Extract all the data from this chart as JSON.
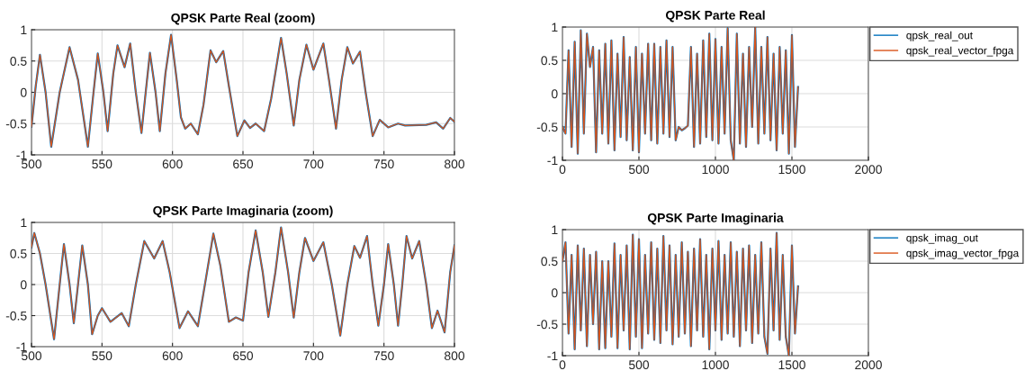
{
  "chart_data": [
    {
      "type": "line",
      "title": "QPSK Parte Real (zoom)",
      "xlim": [
        500,
        800
      ],
      "xticks": [
        500,
        550,
        600,
        650,
        700,
        750,
        800
      ],
      "ylim": [
        -1,
        1
      ],
      "yticks": [
        -1,
        -0.5,
        0,
        0.5,
        1
      ],
      "grid": true,
      "legend": false,
      "x": [
        500,
        503,
        506,
        510,
        514,
        520,
        527,
        533,
        540,
        544,
        547,
        551,
        554,
        558,
        561,
        566,
        570,
        574,
        578,
        581,
        584,
        588,
        591,
        595,
        599,
        603,
        606,
        609,
        613,
        618,
        622,
        627,
        631,
        636,
        640,
        646,
        651,
        655,
        659,
        665,
        670,
        677,
        681,
        686,
        690,
        695,
        700,
        707,
        711,
        716,
        720,
        724,
        728,
        733,
        737,
        742,
        747,
        753,
        760,
        765,
        780,
        787,
        792,
        797,
        800
      ],
      "series": [
        {
          "color": "#0072bd",
          "values": [
            -0.55,
            0.1,
            0.6,
            0,
            -0.87,
            0,
            0.72,
            0.2,
            -0.87,
            0,
            0.62,
            0,
            -0.62,
            0.3,
            0.75,
            0.4,
            0.78,
            0,
            -0.65,
            0,
            0.63,
            0,
            -0.62,
            0.3,
            0.92,
            0.2,
            -0.4,
            -0.58,
            -0.5,
            -0.67,
            -0.2,
            0.67,
            0.48,
            0.66,
            0.1,
            -0.7,
            -0.45,
            -0.57,
            -0.5,
            -0.62,
            -0.1,
            0.87,
            0.3,
            -0.53,
            0.2,
            0.76,
            0.36,
            0.78,
            0.2,
            -0.58,
            0.2,
            0.72,
            0.46,
            0.65,
            0,
            -0.7,
            -0.44,
            -0.56,
            -0.5,
            -0.53,
            -0.52,
            -0.48,
            -0.58,
            -0.41,
            -0.47
          ]
        },
        {
          "color": "#d95319",
          "values": [
            -0.55,
            0.1,
            0.6,
            0,
            -0.87,
            0,
            0.72,
            0.2,
            -0.87,
            0,
            0.62,
            0,
            -0.62,
            0.3,
            0.75,
            0.4,
            0.78,
            0,
            -0.65,
            0,
            0.63,
            0,
            -0.62,
            0.3,
            0.92,
            0.2,
            -0.4,
            -0.58,
            -0.5,
            -0.67,
            -0.2,
            0.67,
            0.48,
            0.66,
            0.1,
            -0.7,
            -0.45,
            -0.57,
            -0.5,
            -0.62,
            -0.1,
            0.87,
            0.3,
            -0.53,
            0.2,
            0.76,
            0.36,
            0.78,
            0.2,
            -0.58,
            0.2,
            0.72,
            0.46,
            0.65,
            0,
            -0.7,
            -0.44,
            -0.56,
            -0.5,
            -0.53,
            -0.52,
            -0.48,
            -0.58,
            -0.41,
            -0.47
          ]
        }
      ]
    },
    {
      "type": "line",
      "title": "QPSK Parte Real",
      "xlim": [
        0,
        2000
      ],
      "xticks": [
        0,
        500,
        1000,
        1500,
        2000
      ],
      "ylim": [
        -1,
        1
      ],
      "yticks": [
        -1,
        -0.5,
        0,
        0.5,
        1
      ],
      "grid": true,
      "legend": "right",
      "x": [
        0,
        20,
        40,
        60,
        80,
        100,
        120,
        140,
        160,
        180,
        200,
        220,
        240,
        260,
        280,
        300,
        320,
        340,
        360,
        380,
        400,
        420,
        440,
        460,
        480,
        500,
        520,
        540,
        560,
        580,
        600,
        620,
        640,
        660,
        680,
        700,
        720,
        740,
        760,
        780,
        800,
        820,
        840,
        860,
        880,
        900,
        920,
        940,
        960,
        980,
        1000,
        1020,
        1040,
        1060,
        1080,
        1100,
        1120,
        1140,
        1160,
        1180,
        1200,
        1220,
        1240,
        1260,
        1280,
        1300,
        1320,
        1340,
        1360,
        1380,
        1400,
        1420,
        1440,
        1460,
        1480,
        1500,
        1520,
        1540
      ],
      "series": [
        {
          "name": "qpsk_real_out",
          "color": "#0072bd",
          "values": [
            -0.5,
            -0.6,
            0.65,
            -0.8,
            0.78,
            -0.9,
            0.95,
            -0.6,
            0.9,
            0.4,
            0.7,
            -0.88,
            0.65,
            -0.6,
            0.75,
            -0.75,
            0.8,
            -0.85,
            0.6,
            -0.65,
            0.85,
            -0.7,
            0.55,
            -0.85,
            0.7,
            -0.88,
            0.6,
            -0.6,
            0.75,
            -0.7,
            0.75,
            -0.75,
            0.7,
            -0.6,
            0.8,
            -0.65,
            0.7,
            -0.7,
            -0.5,
            -0.55,
            -0.52,
            -0.48,
            0.7,
            -0.8,
            0.6,
            -0.75,
            0.8,
            -0.65,
            0.9,
            -0.7,
            0.82,
            -0.75,
            0.7,
            -0.6,
            0.98,
            -0.7,
            -1.0,
            0.9,
            -0.75,
            0.6,
            -0.8,
            0.7,
            -0.5,
            1.0,
            -0.75,
            0.7,
            -0.6,
            0.85,
            -0.7,
            0.6,
            -0.85,
            0.7,
            -0.6,
            0.65,
            -0.9,
            0.88,
            -0.8,
            0.1
          ]
        },
        {
          "name": "qpsk_real_vector_fpga",
          "color": "#d95319",
          "values": [
            -0.5,
            -0.6,
            0.65,
            -0.8,
            0.78,
            -0.9,
            0.95,
            -0.6,
            0.9,
            0.4,
            0.7,
            -0.88,
            0.65,
            -0.6,
            0.75,
            -0.75,
            0.8,
            -0.85,
            0.6,
            -0.65,
            0.85,
            -0.7,
            0.55,
            -0.85,
            0.7,
            -0.88,
            0.6,
            -0.6,
            0.75,
            -0.7,
            0.75,
            -0.75,
            0.7,
            -0.6,
            0.8,
            -0.65,
            0.7,
            -0.7,
            -0.5,
            -0.55,
            -0.52,
            -0.48,
            0.7,
            -0.8,
            0.6,
            -0.75,
            0.8,
            -0.65,
            0.9,
            -0.7,
            0.82,
            -0.75,
            0.7,
            -0.6,
            0.98,
            -0.7,
            -1.0,
            0.9,
            -0.75,
            0.6,
            -0.8,
            0.7,
            -0.5,
            1.0,
            -0.75,
            0.7,
            -0.6,
            0.85,
            -0.7,
            0.6,
            -0.85,
            0.7,
            -0.6,
            0.65,
            -0.9,
            0.88,
            -0.8,
            0.1
          ]
        }
      ]
    },
    {
      "type": "line",
      "title": "QPSK Parte Imaginaria (zoom)",
      "xlim": [
        500,
        800
      ],
      "xticks": [
        500,
        550,
        600,
        650,
        700,
        750,
        800
      ],
      "ylim": [
        -1,
        1
      ],
      "yticks": [
        -1,
        -0.5,
        0,
        0.5,
        1
      ],
      "grid": true,
      "legend": false,
      "x": [
        500,
        502,
        506,
        510,
        516,
        520,
        523,
        527,
        530,
        533,
        536,
        540,
        543,
        547,
        550,
        556,
        564,
        569,
        574,
        580,
        587,
        593,
        598,
        605,
        611,
        618,
        623,
        629,
        634,
        640,
        645,
        650,
        654,
        659,
        664,
        668,
        673,
        677,
        682,
        686,
        690,
        694,
        700,
        707,
        713,
        719,
        724,
        729,
        733,
        738,
        742,
        746,
        750,
        753,
        757,
        760,
        763,
        766,
        770,
        775,
        780,
        784,
        788,
        793,
        797,
        800
      ],
      "series": [
        {
          "color": "#0072bd",
          "values": [
            0.6,
            0.83,
            0.5,
            0,
            -0.88,
            0,
            0.65,
            0,
            -0.62,
            0,
            0.63,
            0,
            -0.8,
            -0.5,
            -0.38,
            -0.6,
            -0.46,
            -0.67,
            0,
            0.7,
            0.42,
            0.7,
            0.2,
            -0.7,
            -0.43,
            -0.67,
            0,
            0.82,
            0.3,
            -0.6,
            -0.53,
            -0.58,
            0.2,
            0.87,
            0.2,
            -0.52,
            0.2,
            0.92,
            0.2,
            -0.53,
            0.2,
            0.75,
            0.38,
            0.68,
            0,
            -0.82,
            0,
            0.62,
            0.43,
            0.78,
            0,
            -0.66,
            0,
            0.65,
            0,
            -0.66,
            0,
            0.78,
            0.42,
            0.7,
            0,
            -0.7,
            -0.42,
            -0.77,
            0.2,
            0.63
          ]
        },
        {
          "color": "#d95319",
          "values": [
            0.6,
            0.83,
            0.5,
            0,
            -0.88,
            0,
            0.65,
            0,
            -0.62,
            0,
            0.63,
            0,
            -0.8,
            -0.5,
            -0.38,
            -0.6,
            -0.46,
            -0.67,
            0,
            0.7,
            0.42,
            0.7,
            0.2,
            -0.7,
            -0.43,
            -0.67,
            0,
            0.82,
            0.3,
            -0.6,
            -0.53,
            -0.58,
            0.2,
            0.87,
            0.2,
            -0.52,
            0.2,
            0.92,
            0.2,
            -0.53,
            0.2,
            0.75,
            0.38,
            0.68,
            0,
            -0.82,
            0,
            0.62,
            0.43,
            0.78,
            0,
            -0.66,
            0,
            0.65,
            0,
            -0.66,
            0,
            0.78,
            0.42,
            0.7,
            0,
            -0.7,
            -0.42,
            -0.77,
            0.2,
            0.63
          ]
        }
      ]
    },
    {
      "type": "line",
      "title": "QPSK Parte Imaginaria",
      "xlim": [
        0,
        2000
      ],
      "xticks": [
        0,
        500,
        1000,
        1500,
        2000
      ],
      "ylim": [
        -1,
        1
      ],
      "yticks": [
        -1,
        -0.5,
        0,
        0.5,
        1
      ],
      "grid": true,
      "legend": "right",
      "x": [
        0,
        20,
        40,
        60,
        80,
        100,
        120,
        140,
        160,
        180,
        200,
        220,
        240,
        260,
        280,
        300,
        320,
        340,
        360,
        380,
        400,
        420,
        440,
        460,
        480,
        500,
        520,
        540,
        560,
        580,
        600,
        620,
        640,
        660,
        680,
        700,
        720,
        740,
        760,
        780,
        800,
        820,
        840,
        860,
        880,
        900,
        920,
        940,
        960,
        980,
        1000,
        1020,
        1040,
        1060,
        1080,
        1100,
        1120,
        1140,
        1160,
        1180,
        1200,
        1220,
        1240,
        1260,
        1280,
        1300,
        1320,
        1340,
        1360,
        1380,
        1400,
        1420,
        1440,
        1460,
        1480,
        1500,
        1520,
        1540
      ],
      "series": [
        {
          "name": "qpsk_imag_out",
          "color": "#0072bd",
          "values": [
            0.5,
            0.8,
            -0.65,
            0.6,
            -0.9,
            0.75,
            -0.6,
            0.7,
            -0.85,
            0.6,
            -0.5,
            0.65,
            -0.9,
            0.5,
            -0.88,
            0.5,
            -0.7,
            0.78,
            -0.88,
            0.6,
            -0.6,
            0.75,
            -0.9,
            0.92,
            -0.7,
            0.85,
            -0.88,
            0.6,
            -0.65,
            0.8,
            -0.75,
            0.7,
            -0.8,
            0.9,
            -0.6,
            0.75,
            -0.82,
            0.6,
            -0.7,
            0.8,
            -0.65,
            0.65,
            -0.85,
            0.7,
            -0.6,
            0.85,
            -0.7,
            0.6,
            -0.9,
            0.7,
            -0.6,
            0.82,
            -0.75,
            0.6,
            -0.65,
            0.8,
            -0.7,
            0.65,
            -0.85,
            0.7,
            -0.6,
            0.75,
            -0.8,
            0.6,
            -0.65,
            0.8,
            -0.7,
            -0.97,
            0.7,
            -0.6,
            0.95,
            -0.75,
            0.6,
            -0.7,
            -1.0,
            0.75,
            -0.65,
            0.1
          ]
        },
        {
          "name": "qpsk_imag_vector_fpga",
          "color": "#d95319",
          "values": [
            0.5,
            0.8,
            -0.65,
            0.6,
            -0.9,
            0.75,
            -0.6,
            0.7,
            -0.85,
            0.6,
            -0.5,
            0.65,
            -0.9,
            0.5,
            -0.88,
            0.5,
            -0.7,
            0.78,
            -0.88,
            0.6,
            -0.6,
            0.75,
            -0.9,
            0.92,
            -0.7,
            0.85,
            -0.88,
            0.6,
            -0.65,
            0.8,
            -0.75,
            0.7,
            -0.8,
            0.9,
            -0.6,
            0.75,
            -0.82,
            0.6,
            -0.7,
            0.8,
            -0.65,
            0.65,
            -0.85,
            0.7,
            -0.6,
            0.85,
            -0.7,
            0.6,
            -0.9,
            0.7,
            -0.6,
            0.82,
            -0.75,
            0.6,
            -0.65,
            0.8,
            -0.7,
            0.65,
            -0.85,
            0.7,
            -0.6,
            0.75,
            -0.8,
            0.6,
            -0.65,
            0.8,
            -0.7,
            -0.97,
            0.7,
            -0.6,
            0.95,
            -0.75,
            0.6,
            -0.7,
            -1.0,
            0.75,
            -0.65,
            0.1
          ]
        }
      ]
    }
  ]
}
